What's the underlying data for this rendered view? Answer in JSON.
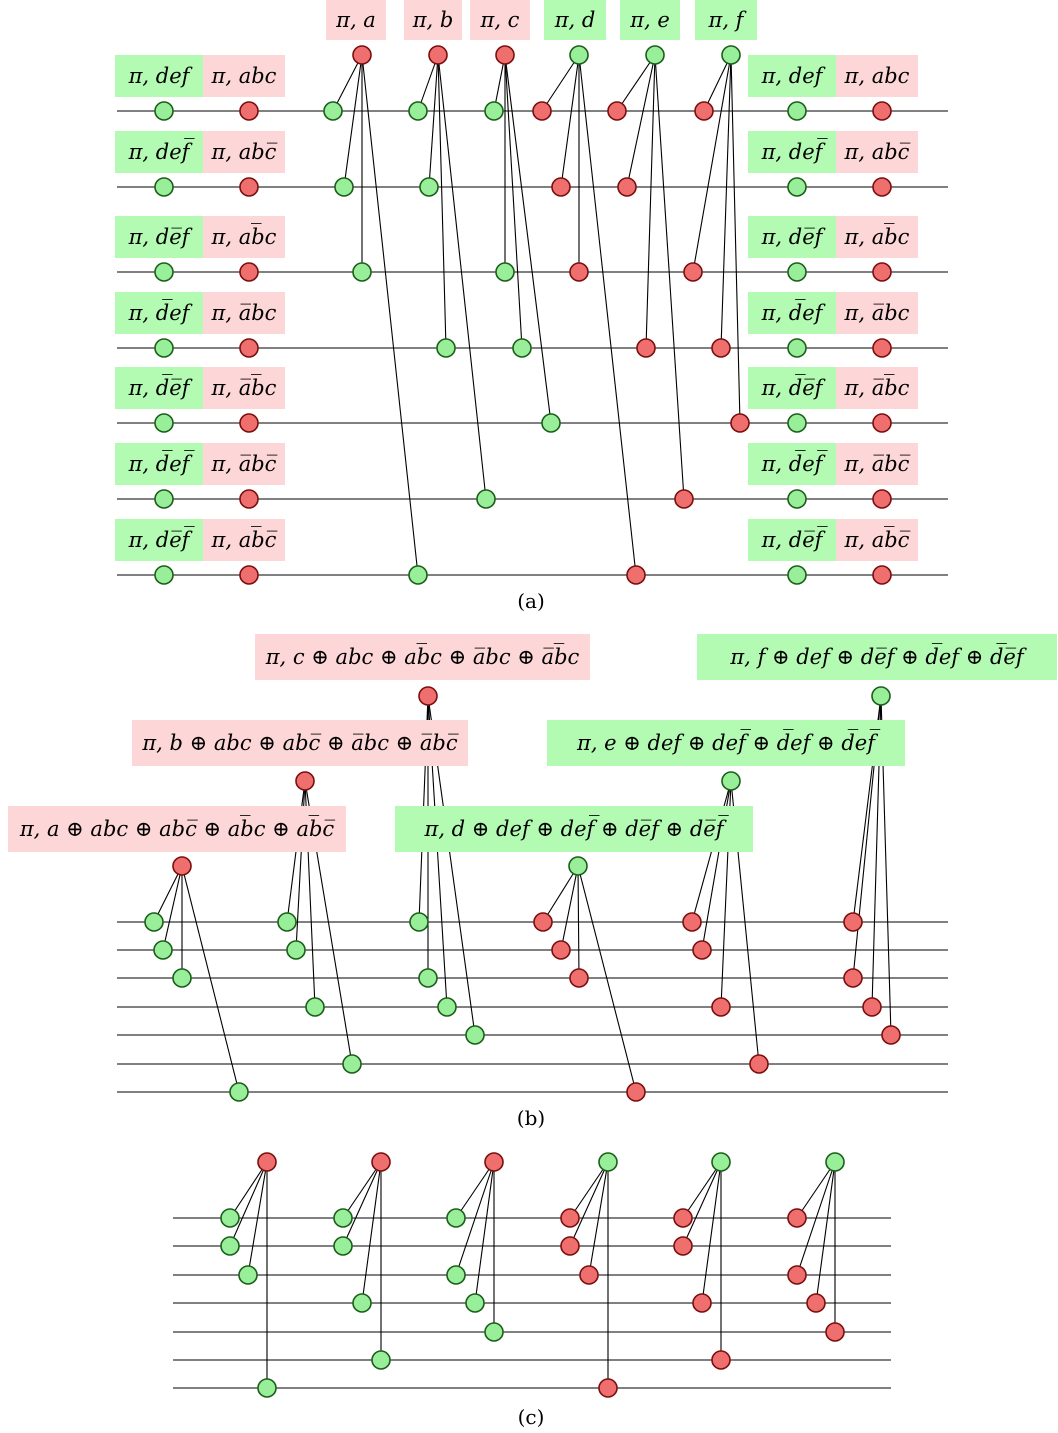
{
  "colors": {
    "green": "#aef7ae",
    "red": "#f77373",
    "green_label_bg": "#b3fbb3",
    "red_label_bg": "#fdd7d7",
    "green_node": "#99ee99",
    "red_node": "#ef6f6f"
  },
  "panel_a": {
    "caption": "(a)",
    "top_labels": [
      {
        "text": "π, a",
        "color": "red"
      },
      {
        "text": "π, b",
        "color": "red"
      },
      {
        "text": "π, c",
        "color": "red"
      },
      {
        "text": "π, d",
        "color": "green"
      },
      {
        "text": "π, e",
        "color": "green"
      },
      {
        "text": "π, f",
        "color": "green"
      }
    ],
    "rows": [
      {
        "green_label": "π, def",
        "red_label": "π, abc"
      },
      {
        "green_label": "π, def̅",
        "red_label": "π, abc̅"
      },
      {
        "green_label": "π, de̅f",
        "red_label": "π, ab̅c"
      },
      {
        "green_label": "π, d̅ef",
        "red_label": "π, a̅bc"
      },
      {
        "green_label": "π, d̅e̅f",
        "red_label": "π, a̅b̅c"
      },
      {
        "green_label": "π, d̅ef̅",
        "red_label": "π, a̅bc̅"
      },
      {
        "green_label": "π, de̅f̅",
        "red_label": "π, ab̅c̅"
      }
    ]
  },
  "panel_b": {
    "caption": "(b)",
    "labels": [
      {
        "text": "π, c ⊕ abc ⊕ ab̅c ⊕ a̅bc ⊕ a̅b̅c",
        "color": "red"
      },
      {
        "text": "π, f ⊕ def ⊕ de̅f ⊕ d̅ef ⊕ d̅e̅f",
        "color": "green"
      },
      {
        "text": "π, b ⊕ abc ⊕ abc̅ ⊕ a̅bc ⊕ a̅bc̅",
        "color": "red"
      },
      {
        "text": "π, e ⊕ def ⊕ def̅ ⊕ d̅ef ⊕ d̅ef̅",
        "color": "green"
      },
      {
        "text": "π, a ⊕ abc ⊕ abc̅ ⊕ ab̅c ⊕ ab̅c̅",
        "color": "red"
      },
      {
        "text": "π, d ⊕ def ⊕ def̅ ⊕ de̅f ⊕ de̅f̅",
        "color": "green"
      }
    ]
  },
  "panel_c": {
    "caption": "(c)"
  }
}
